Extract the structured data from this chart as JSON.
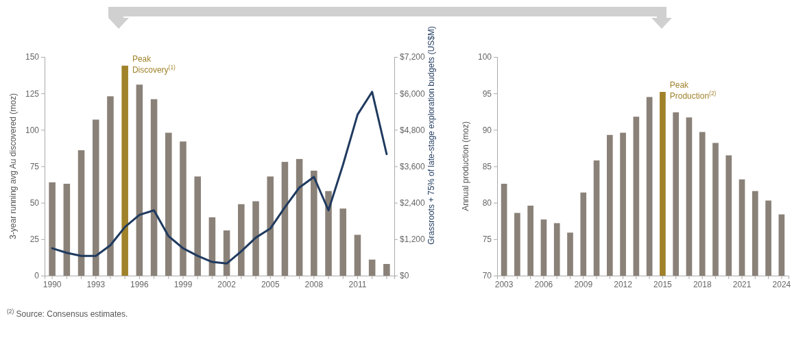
{
  "chart_data": [
    {
      "type": "bar",
      "categories": [
        "1990",
        null,
        null,
        "1993",
        null,
        null,
        "1996",
        null,
        null,
        "1999",
        null,
        null,
        "2002",
        null,
        null,
        "2005",
        null,
        null,
        "2008",
        null,
        null,
        "2011",
        null,
        null
      ],
      "series": [
        {
          "colors": [
            "#8a8178",
            "#8a8178",
            "#8a8178",
            "#8a8178",
            "#8a8178",
            "#a0822a",
            "#8a8178",
            "#8a8178",
            "#8a8178",
            "#8a8178",
            "#8a8178",
            "#8a8178",
            "#8a8178",
            "#8a8178",
            "#8a8178",
            "#8a8178",
            "#8a8178",
            "#8a8178",
            "#8a8178",
            "#8a8178",
            "#8a8178",
            "#8a8178",
            "#8a8178",
            "#8a8178"
          ],
          "values": [
            64,
            63,
            86,
            107,
            123,
            144,
            131,
            121,
            98,
            92,
            68,
            40,
            31,
            49,
            51,
            68,
            78,
            80,
            72,
            58,
            46,
            28,
            11,
            8
          ]
        },
        {
          "type": "line",
          "axis": "y2",
          "color": "#1f3a5f",
          "values": [
            900,
            750,
            650,
            650,
            1000,
            1600,
            2000,
            2150,
            1300,
            900,
            650,
            450,
            400,
            800,
            1250,
            1550,
            2250,
            2900,
            3250,
            2150,
            3650,
            5300,
            6050,
            4000
          ]
        }
      ],
      "ylim": [
        0,
        150
      ],
      "yticks": [
        0,
        25,
        50,
        75,
        100,
        125,
        150
      ],
      "y2lim": [
        0,
        7200
      ],
      "y2ticks": [
        {
          "value": 0,
          "label": "$0"
        },
        {
          "value": 1200,
          "label": "$1,200"
        },
        {
          "value": 2400,
          "label": "$2,400"
        },
        {
          "value": 3600,
          "label": "$3,600"
        },
        {
          "value": 4800,
          "label": "$4,800"
        },
        {
          "value": 6000,
          "label": "$6,000"
        },
        {
          "value": 7200,
          "label": "$7,200"
        }
      ],
      "ylabel": "3-year running avg Au discovered (moz)",
      "y2label": "Grassroots + 75% of late-stage exploration budgets (US$M)",
      "annotations": [
        "Peak Discovery$^{(1)}$"
      ]
    },
    {
      "type": "bar",
      "categories": [
        "2003",
        null,
        null,
        "2006",
        null,
        null,
        "2009",
        null,
        null,
        "2012",
        null,
        null,
        "2015",
        null,
        null,
        "2018",
        null,
        null,
        "2021",
        null,
        null,
        "2024"
      ],
      "series": [
        {
          "colors": [
            "#8a8178",
            "#8a8178",
            "#8a8178",
            "#8a8178",
            "#8a8178",
            "#8a8178",
            "#8a8178",
            "#8a8178",
            "#8a8178",
            "#8a8178",
            "#8a8178",
            "#8a8178",
            "#a0822a",
            "#8a8178",
            "#8a8178",
            "#8a8178",
            "#8a8178",
            "#8a8178",
            "#8a8178",
            "#8a8178",
            "#8a8178",
            "#8a8178"
          ],
          "values": [
            82.6,
            78.6,
            79.6,
            77.7,
            77.2,
            75.9,
            81.4,
            85.8,
            89.3,
            89.6,
            91.8,
            94.5,
            95.2,
            92.4,
            91.7,
            89.7,
            88.2,
            86.5,
            83.2,
            81.6,
            80.3,
            78.4
          ]
        }
      ],
      "ylim": [
        70,
        100
      ],
      "yticks": [
        70,
        75,
        80,
        85,
        90,
        95,
        100
      ],
      "ylabel": "Annual production (moz)",
      "annotations": [
        "Peak Production$^{(2)}$",
        "$^{(2)}$ Source: Consensus estimates."
      ]
    }
  ]
}
